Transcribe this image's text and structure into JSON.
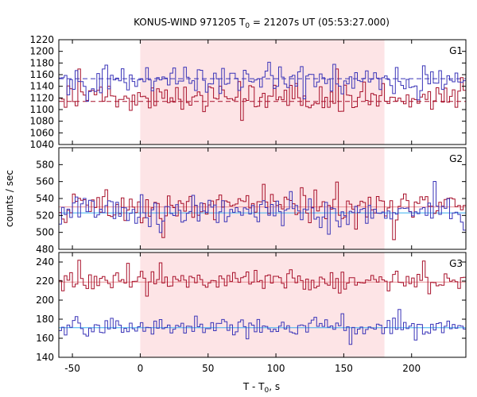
{
  "chart_data": {
    "type": "line",
    "title_main": "KONUS-WIND 971205 T",
    "title_sub": "0",
    "title_rest": " = 21207s UT (05:53:27.000)",
    "xlabel_main": "T - T",
    "xlabel_sub": "0",
    "xlabel_rest": ", s",
    "ylabel": "counts / sec",
    "xlim": [
      -60,
      240
    ],
    "x_ticks": [
      -50,
      0,
      50,
      100,
      150,
      200
    ],
    "x_tick_labels": [
      "-50",
      "0",
      "50",
      "100",
      "150",
      "200"
    ],
    "shaded_interval": [
      0,
      180
    ],
    "shade_color": "#fde4e6",
    "series_colors": {
      "blue": "#3a34b8",
      "red": "#a8102a",
      "blue_bg": "#38b0f0",
      "red_bg": "#e88f94"
    },
    "panels": [
      {
        "label": "G1",
        "ylim": [
          1040,
          1220
        ],
        "y_ticks": [
          1040,
          1060,
          1080,
          1100,
          1120,
          1140,
          1160,
          1180,
          1200,
          1220
        ],
        "y_tick_labels": [
          "1040",
          "1060",
          "1080",
          "1100",
          "1120",
          "1140",
          "1160",
          "1180",
          "1200",
          "1220"
        ],
        "blue_background": 1153,
        "red_background": 1114,
        "bg_style": "dashed",
        "blue_base": 1150,
        "blue_amp": 19,
        "red_base": 1118,
        "red_amp": 20
      },
      {
        "label": "G2",
        "ylim": [
          480,
          600
        ],
        "y_ticks": [
          480,
          500,
          520,
          540,
          560,
          580
        ],
        "y_tick_labels": [
          "480",
          "500",
          "520",
          "540",
          "560",
          "580"
        ],
        "blue_background": 523,
        "red_background": 530,
        "bg_style": "solid",
        "blue_base": 525,
        "blue_amp": 13,
        "red_base": 531,
        "red_amp": 15
      },
      {
        "label": "G3",
        "ylim": [
          140,
          250
        ],
        "y_ticks": [
          140,
          160,
          180,
          200,
          220,
          240
        ],
        "y_tick_labels": [
          "140",
          "160",
          "180",
          "200",
          "220",
          "240"
        ],
        "blue_background": 171,
        "red_background": 219,
        "bg_style": "solid",
        "blue_base": 172,
        "blue_amp": 8,
        "red_base": 220,
        "red_amp": 9
      }
    ]
  }
}
